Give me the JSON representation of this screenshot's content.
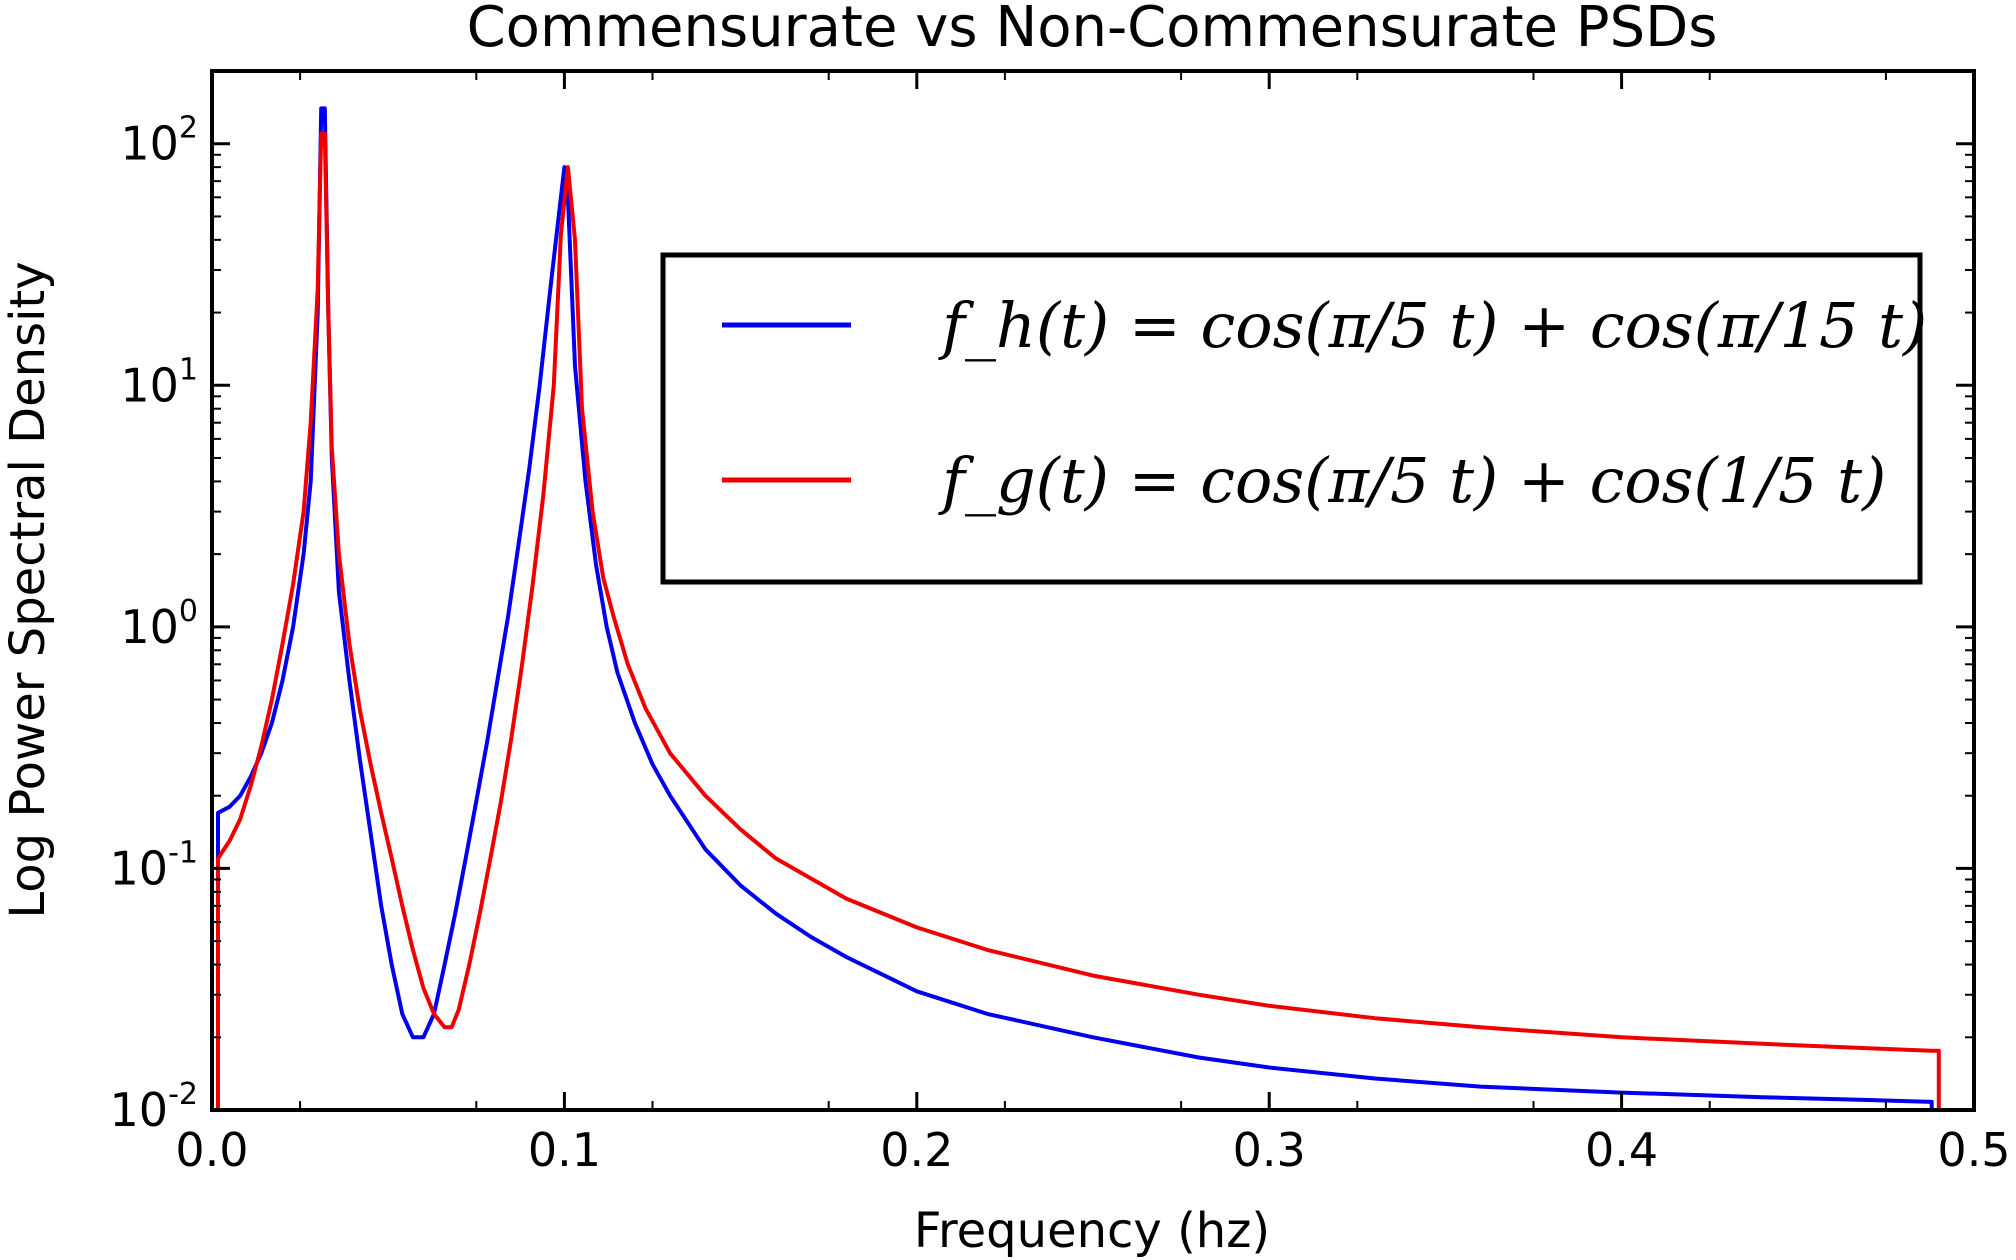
{
  "chart_data": {
    "type": "line",
    "title": "Commensurate vs Non-Commensurate PSDs",
    "xlabel": "Frequency (hz)",
    "ylabel": "Log Power Spectral Density",
    "xlim": [
      0.0,
      0.5
    ],
    "ylim": [
      0.01,
      200
    ],
    "yscale": "log",
    "grid": false,
    "legend_position": "upper-right",
    "x_ticks": [
      {
        "value": 0.0,
        "label": "0.0"
      },
      {
        "value": 0.1,
        "label": "0.1"
      },
      {
        "value": 0.2,
        "label": "0.2"
      },
      {
        "value": 0.3,
        "label": "0.3"
      },
      {
        "value": 0.4,
        "label": "0.4"
      },
      {
        "value": 0.5,
        "label": "0.5"
      }
    ],
    "y_ticks": [
      {
        "value": 0.01,
        "base": "10",
        "exp": "-2"
      },
      {
        "value": 0.1,
        "base": "10",
        "exp": "-1"
      },
      {
        "value": 1,
        "base": "10",
        "exp": "0"
      },
      {
        "value": 10,
        "base": "10",
        "exp": "1"
      },
      {
        "value": 100,
        "base": "10",
        "exp": "2"
      }
    ],
    "series": [
      {
        "name": "f_h(t) = cos(π/5 t) + cos(π/15 t)",
        "color": "#0000ee",
        "x": [
          0.0017,
          0.0017,
          0.005,
          0.008,
          0.011,
          0.014,
          0.017,
          0.02,
          0.023,
          0.026,
          0.028,
          0.03,
          0.031,
          0.032,
          0.033,
          0.034,
          0.036,
          0.039,
          0.042,
          0.045,
          0.048,
          0.051,
          0.054,
          0.057,
          0.06,
          0.063,
          0.066,
          0.069,
          0.072,
          0.075,
          0.078,
          0.081,
          0.084,
          0.087,
          0.09,
          0.093,
          0.096,
          0.099,
          0.1,
          0.101,
          0.103,
          0.106,
          0.109,
          0.112,
          0.115,
          0.12,
          0.125,
          0.13,
          0.14,
          0.15,
          0.16,
          0.17,
          0.18,
          0.2,
          0.22,
          0.25,
          0.28,
          0.3,
          0.33,
          0.36,
          0.4,
          0.44,
          0.47,
          0.488,
          0.488
        ],
        "y": [
          0.01,
          0.17,
          0.18,
          0.2,
          0.24,
          0.3,
          0.4,
          0.6,
          1.0,
          2.0,
          4.0,
          20,
          140,
          140,
          20,
          5.0,
          1.4,
          0.6,
          0.28,
          0.14,
          0.07,
          0.04,
          0.025,
          0.02,
          0.02,
          0.025,
          0.04,
          0.065,
          0.11,
          0.19,
          0.33,
          0.6,
          1.1,
          2.2,
          4.5,
          10,
          25,
          60,
          80,
          60,
          12,
          4.0,
          1.8,
          1.0,
          0.65,
          0.4,
          0.27,
          0.2,
          0.12,
          0.085,
          0.065,
          0.052,
          0.043,
          0.031,
          0.025,
          0.02,
          0.0165,
          0.015,
          0.0135,
          0.0125,
          0.0118,
          0.0113,
          0.011,
          0.0108,
          0.0098
        ]
      },
      {
        "name": "f_g(t) = cos(π/5 t) + cos(1/5 t)",
        "color": "#ee0000",
        "x": [
          0.0017,
          0.0017,
          0.005,
          0.008,
          0.011,
          0.014,
          0.017,
          0.02,
          0.023,
          0.026,
          0.028,
          0.03,
          0.031,
          0.032,
          0.033,
          0.034,
          0.036,
          0.039,
          0.042,
          0.045,
          0.048,
          0.051,
          0.054,
          0.057,
          0.06,
          0.063,
          0.066,
          0.068,
          0.07,
          0.073,
          0.076,
          0.079,
          0.082,
          0.085,
          0.088,
          0.091,
          0.094,
          0.097,
          0.099,
          0.101,
          0.103,
          0.105,
          0.108,
          0.111,
          0.114,
          0.118,
          0.123,
          0.13,
          0.14,
          0.15,
          0.16,
          0.18,
          0.2,
          0.22,
          0.25,
          0.28,
          0.3,
          0.33,
          0.36,
          0.4,
          0.44,
          0.47,
          0.488,
          0.49,
          0.49
        ],
        "y": [
          0.01,
          0.11,
          0.13,
          0.16,
          0.22,
          0.32,
          0.5,
          0.85,
          1.5,
          3.0,
          7.0,
          25,
          110,
          110,
          20,
          5.5,
          2.0,
          0.85,
          0.45,
          0.27,
          0.17,
          0.11,
          0.07,
          0.046,
          0.032,
          0.025,
          0.022,
          0.022,
          0.026,
          0.04,
          0.065,
          0.11,
          0.19,
          0.35,
          0.7,
          1.5,
          3.5,
          10,
          42,
          80,
          40,
          8.0,
          3.0,
          1.6,
          1.1,
          0.7,
          0.46,
          0.3,
          0.2,
          0.145,
          0.11,
          0.075,
          0.057,
          0.046,
          0.036,
          0.03,
          0.027,
          0.024,
          0.022,
          0.02,
          0.0188,
          0.018,
          0.0176,
          0.0176,
          0.0098
        ]
      }
    ]
  }
}
